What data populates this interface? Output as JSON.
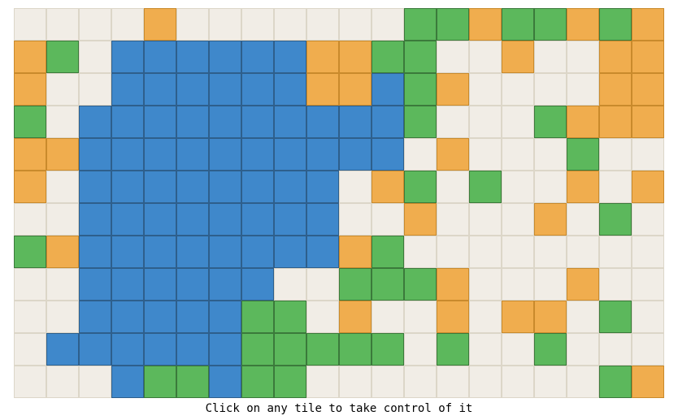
{
  "instruction": "Click on any tile to take control of it",
  "colors": {
    "e": "#f1ede6",
    "b": "#3f88cb",
    "g": "#5cb85c",
    "o": "#f0ad4e"
  },
  "legend": {
    "e": "neutral",
    "b": "blue-player",
    "g": "green-player",
    "o": "orange-player"
  },
  "grid": [
    "eeeeoeeeeeeeggoggogo",
    "ogebbbbbbooggeeoeeoo",
    "oeebbbbbboobgoeeeeoo",
    "gebbbbbbbbbbgeeegooo",
    "oobbbbbbbbbbeoeeegee",
    "oebbbbbbbbeogegeeoeo",
    "eebbbbbbbbeeoeeeoege",
    "gobbbbbbbbogeeeeeeee",
    "eebbbbbbeegggoeeeoee",
    "eebbbbbggeoeeoeooege",
    "ebbbbbbgggggegeegeee",
    "eeebggbggeeeeeeeeego"
  ]
}
